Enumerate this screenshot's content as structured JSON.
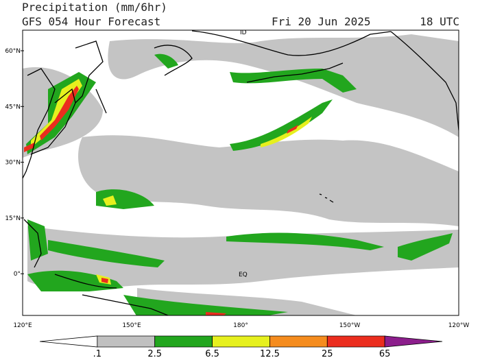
{
  "header": {
    "title": "Precipitation (mm/6hr)",
    "subtitle": "GFS 054 Hour Forecast",
    "date": "Fri 20 Jun 2025",
    "time": "18 UTC"
  },
  "map": {
    "lat_labels": [
      "60°N",
      "45°N",
      "30°N",
      "15°N",
      "0°"
    ],
    "lon_labels": [
      "120°E",
      "150°E",
      "180°",
      "150°W",
      "120°W"
    ],
    "annotations": [
      "EQ",
      "ID"
    ]
  },
  "colorbar": {
    "labels": [
      ".1",
      "2.5",
      "6.5",
      "12.5",
      "25",
      "65"
    ],
    "colors": [
      "#ffffff",
      "#c0c0c0",
      "#22a61e",
      "#e6f01e",
      "#f58c1e",
      "#eb2d1e",
      "#8c1e8c"
    ]
  }
}
